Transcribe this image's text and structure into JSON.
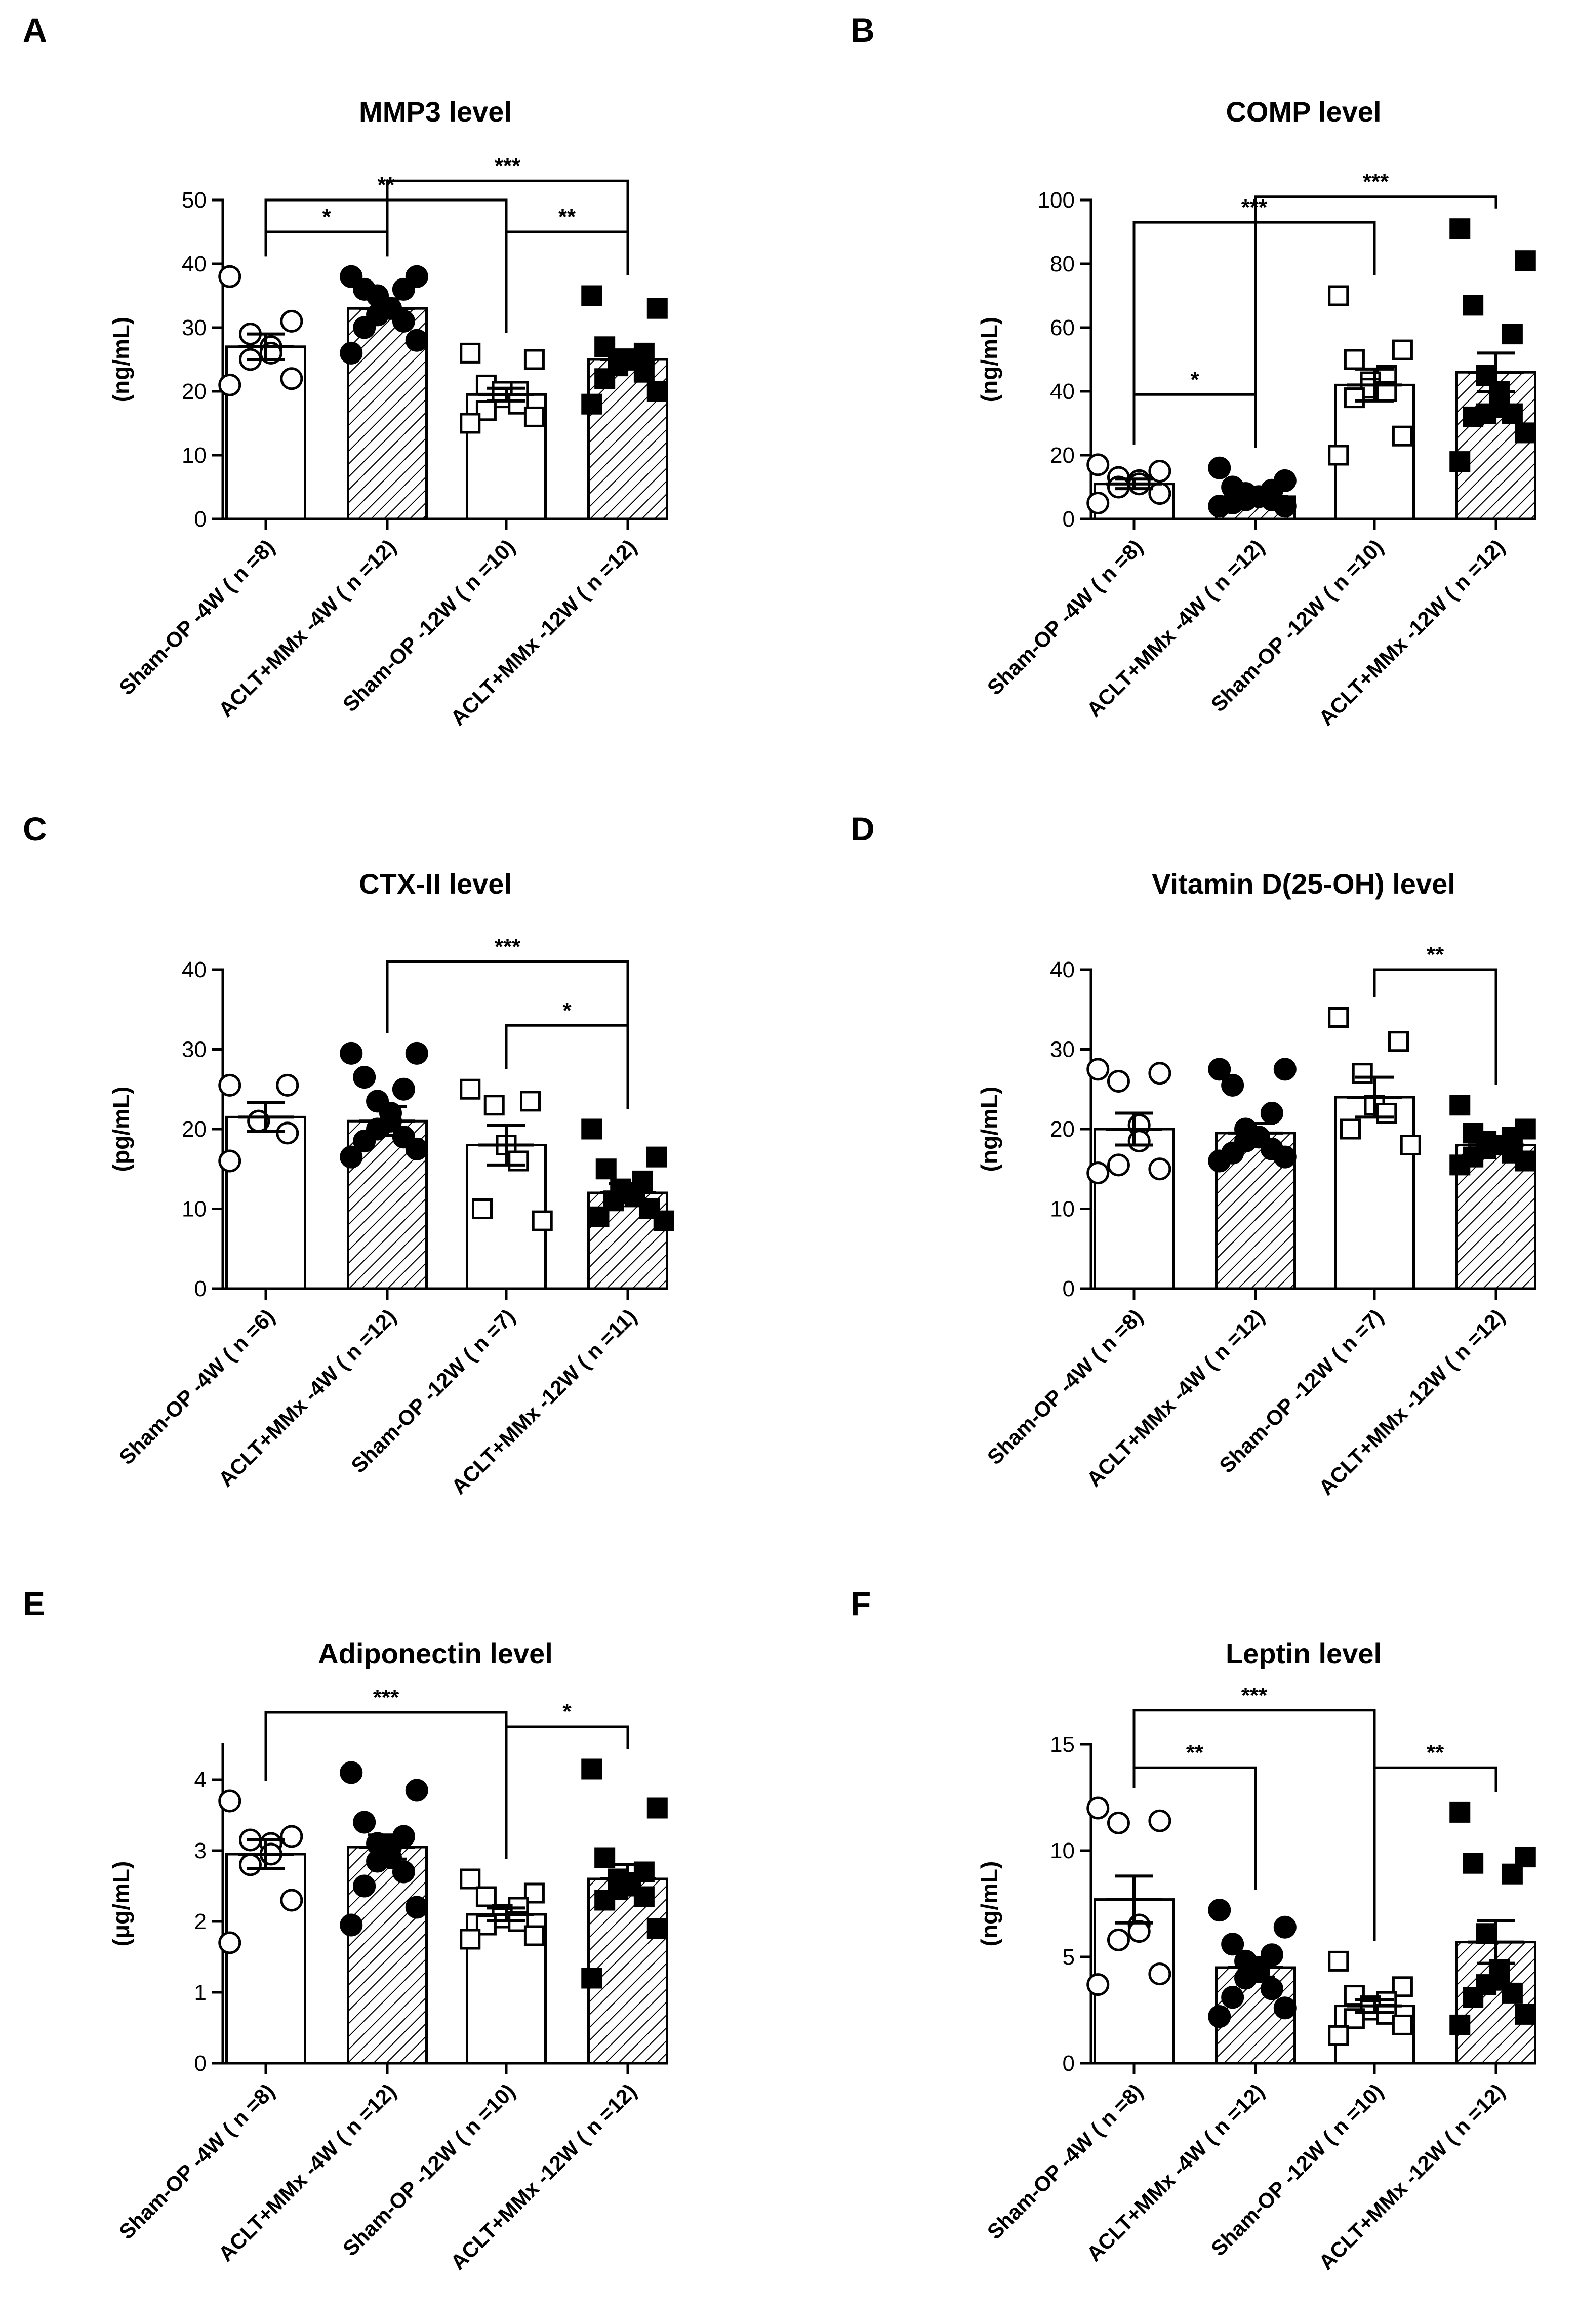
{
  "figure": {
    "panels": [
      "A",
      "B",
      "C",
      "D",
      "E",
      "F"
    ]
  },
  "chart_data": [
    {
      "type": "bar",
      "panel": "A",
      "title": "MMP3 level",
      "ylabel": "(ng/mL)",
      "ylim": [
        0,
        50
      ],
      "yticks": [
        0,
        10,
        20,
        30,
        40,
        50
      ],
      "categories": [
        "Sham-OP -4W ( n =8)",
        "ACLT+MMx -4W ( n =12)",
        "Sham-OP -12W ( n =10)",
        "ACLT+MMx -12W ( n =12)"
      ],
      "values": [
        27,
        33,
        19.5,
        25
      ],
      "errors": [
        2,
        1.5,
        1,
        1.5
      ],
      "points": [
        [
          38,
          31,
          29,
          27,
          26,
          25,
          22,
          21
        ],
        [
          38,
          38,
          36,
          36,
          35,
          33,
          33,
          32,
          31,
          30,
          28,
          26
        ],
        [
          26,
          25,
          21,
          20,
          20,
          19,
          18,
          17,
          16,
          15
        ],
        [
          35,
          33,
          27,
          26,
          25,
          25,
          25,
          24,
          23,
          22,
          20,
          18
        ]
      ],
      "comparisons": [
        {
          "from": 0,
          "to": 1,
          "label": "*",
          "y": 45
        },
        {
          "from": 0,
          "to": 2,
          "label": "**",
          "y": 50
        },
        {
          "from": 1,
          "to": 3,
          "label": "***",
          "y": 53
        },
        {
          "from": 2,
          "to": 3,
          "label": "**",
          "y": 45
        }
      ]
    },
    {
      "type": "bar",
      "panel": "B",
      "title": "COMP level",
      "ylabel": "(ng/mL)",
      "ylim": [
        0,
        100
      ],
      "yticks": [
        0,
        20,
        40,
        60,
        80,
        100
      ],
      "categories": [
        "Sham-OP -4W ( n =8)",
        "ACLT+MMx -4W ( n =12)",
        "Sham-OP -12W ( n =10)",
        "ACLT+MMx -12W ( n =12)"
      ],
      "values": [
        11,
        7,
        42,
        46
      ],
      "errors": [
        1.5,
        1.5,
        5,
        6
      ],
      "points": [
        [
          17,
          15,
          13,
          12,
          11,
          10,
          8,
          5
        ],
        [
          16,
          12,
          10,
          9,
          8,
          7,
          7,
          6,
          6,
          5,
          4,
          4
        ],
        [
          70,
          53,
          50,
          45,
          43,
          41,
          40,
          38,
          26,
          20
        ],
        [
          91,
          81,
          67,
          58,
          45,
          40,
          35,
          33,
          33,
          32,
          27,
          18
        ]
      ],
      "comparisons": [
        {
          "from": 0,
          "to": 1,
          "label": "*",
          "y": 39
        },
        {
          "from": 0,
          "to": 2,
          "label": "***",
          "y": 93
        },
        {
          "from": 1,
          "to": 3,
          "label": "***",
          "y": 101
        }
      ]
    },
    {
      "type": "bar",
      "panel": "C",
      "title": "CTX-II level",
      "ylabel": "(pg/mL)",
      "ylim": [
        0,
        40
      ],
      "yticks": [
        0,
        10,
        20,
        30,
        40
      ],
      "categories": [
        "Sham-OP -4W ( n =6)",
        "ACLT+MMx -4W ( n =12)",
        "Sham-OP -12W ( n =7)",
        "ACLT+MMx -12W ( n =11)"
      ],
      "values": [
        21.5,
        21,
        18,
        12
      ],
      "errors": [
        1.8,
        1.8,
        2.5,
        1.2
      ],
      "points": [
        [
          25.5,
          25.5,
          21,
          21,
          19.5,
          16
        ],
        [
          29.5,
          29.5,
          26.5,
          25,
          23.5,
          22,
          21,
          20,
          19,
          18.5,
          17.5,
          16.5
        ],
        [
          25,
          23.5,
          23,
          18,
          16,
          10,
          8.5
        ],
        [
          20,
          16.5,
          15,
          13.5,
          12.5,
          12,
          11.5,
          11,
          10,
          9,
          8.5
        ]
      ],
      "comparisons": [
        {
          "from": 1,
          "to": 3,
          "label": "***",
          "y": 41
        },
        {
          "from": 2,
          "to": 3,
          "label": "*",
          "y": 33
        }
      ]
    },
    {
      "type": "bar",
      "panel": "D",
      "title": "Vitamin D(25-OH) level",
      "ylabel": "(ng/mL)",
      "ylim": [
        0,
        40
      ],
      "yticks": [
        0,
        10,
        20,
        30,
        40
      ],
      "categories": [
        "Sham-OP -4W ( n =8)",
        "ACLT+MMx -4W ( n =12)",
        "Sham-OP -12W ( n =7)",
        "ACLT+MMx -12W ( n =12)"
      ],
      "values": [
        20,
        19.5,
        24,
        18
      ],
      "errors": [
        2,
        1.2,
        2.5,
        0.8
      ],
      "points": [
        [
          27.5,
          27,
          26,
          20.5,
          18.5,
          15.5,
          15,
          14.5
        ],
        [
          27.5,
          27.5,
          25.5,
          22,
          20,
          19,
          19,
          18.5,
          17.5,
          17,
          16.5,
          16
        ],
        [
          34,
          31,
          27,
          23,
          22,
          20,
          18
        ],
        [
          23,
          20,
          19.5,
          19,
          18.5,
          18,
          18,
          17.5,
          17,
          16.5,
          16,
          15.5
        ]
      ],
      "comparisons": [
        {
          "from": 2,
          "to": 3,
          "label": "**",
          "y": 40
        }
      ]
    },
    {
      "type": "bar",
      "panel": "E",
      "title": "Adiponectin level",
      "ylabel": "(μg/mL)",
      "ylim": [
        0,
        4.5
      ],
      "yticks": [
        0,
        1,
        2,
        3,
        4
      ],
      "categories": [
        "Sham-OP -4W ( n =8)",
        "ACLT+MMx -4W ( n =12)",
        "Sham-OP -12W ( n =10)",
        "ACLT+MMx -12W ( n =12)"
      ],
      "values": [
        2.95,
        3.05,
        2.1,
        2.6
      ],
      "errors": [
        0.2,
        0.17,
        0.09,
        0.2
      ],
      "points": [
        [
          3.7,
          3.2,
          3.15,
          3.1,
          2.95,
          2.8,
          2.3,
          1.7
        ],
        [
          4.1,
          3.85,
          3.4,
          3.2,
          3.1,
          3.05,
          2.9,
          2.85,
          2.7,
          2.5,
          2.2,
          1.95
        ],
        [
          2.6,
          2.4,
          2.35,
          2.2,
          2.1,
          2.05,
          2.0,
          1.95,
          1.8,
          1.75
        ],
        [
          4.15,
          3.6,
          2.9,
          2.7,
          2.6,
          2.55,
          2.5,
          2.45,
          2.35,
          2.3,
          1.9,
          1.2
        ]
      ],
      "comparisons": [
        {
          "from": 0,
          "to": 2,
          "label": "***",
          "y": 4.95
        },
        {
          "from": 2,
          "to": 3,
          "label": "*",
          "y": 4.75
        }
      ]
    },
    {
      "type": "bar",
      "panel": "F",
      "title": "Leptin level",
      "ylabel": "(ng/mL)",
      "ylim": [
        0,
        15
      ],
      "yticks": [
        0,
        5,
        10,
        15
      ],
      "categories": [
        "Sham-OP -4W ( n =8)",
        "ACLT+MMx -4W ( n =12)",
        "Sham-OP -12W ( n =10)",
        "ACLT+MMx -12W ( n =12)"
      ],
      "values": [
        7.7,
        4.5,
        2.7,
        5.7
      ],
      "errors": [
        1.1,
        0.45,
        0.3,
        1
      ],
      "points": [
        [
          12,
          11.4,
          11.3,
          6.5,
          6.2,
          5.8,
          4.2,
          3.7
        ],
        [
          7.2,
          6.4,
          5.6,
          5.1,
          4.8,
          4.5,
          4.3,
          4.0,
          3.5,
          3.1,
          2.6,
          2.2
        ],
        [
          4.8,
          3.6,
          3.2,
          2.9,
          2.7,
          2.5,
          2.3,
          2.1,
          1.8,
          1.3
        ],
        [
          11.8,
          9.7,
          9.4,
          8.9,
          6.1,
          4.4,
          3.9,
          3.7,
          3.3,
          3.1,
          2.3,
          1.8
        ]
      ],
      "comparisons": [
        {
          "from": 0,
          "to": 1,
          "label": "**",
          "y": 13.9
        },
        {
          "from": 0,
          "to": 2,
          "label": "***",
          "y": 16.6
        },
        {
          "from": 2,
          "to": 3,
          "label": "**",
          "y": 13.9
        }
      ]
    }
  ]
}
